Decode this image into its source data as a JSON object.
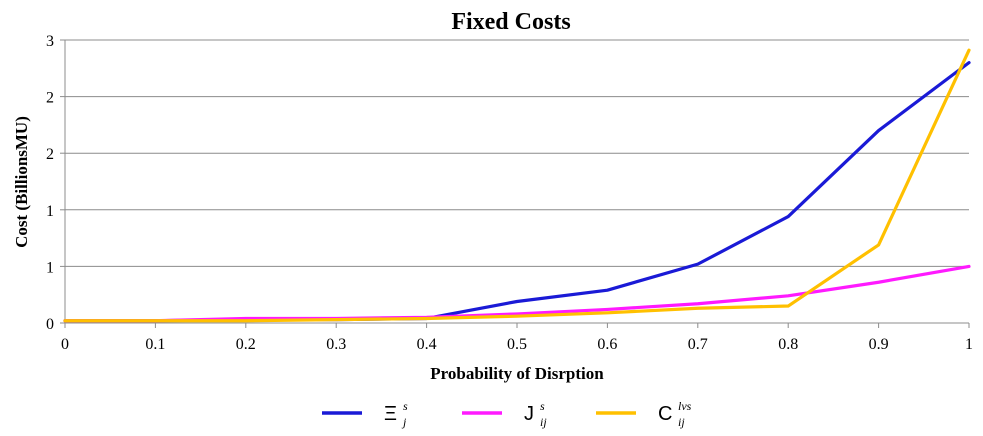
{
  "chart_data": {
    "type": "line",
    "title": "Fixed Costs",
    "xlabel": "Probability  of Disrption",
    "ylabel": "Cost (BillionsMU)",
    "x": [
      0,
      0.1,
      0.2,
      0.3,
      0.4,
      0.5,
      0.6,
      0.7,
      0.8,
      0.9,
      1
    ],
    "x_tick_labels": [
      "0",
      "0.1",
      "0.2",
      "0.3",
      "0.4",
      "0.5",
      "0.6",
      "0.7",
      "0.8",
      "0.9",
      "1"
    ],
    "y_tick_labels": [
      "0",
      "1",
      "1",
      "2",
      "2",
      "3"
    ],
    "ylim": [
      0,
      2.5
    ],
    "xlim": [
      0,
      1
    ],
    "grid": true,
    "legend_position": "bottom",
    "series": [
      {
        "name": "Ξ",
        "superscript": "s",
        "subscript": "j",
        "color": "#1a1ad6",
        "values": [
          0.02,
          0.02,
          0.03,
          0.03,
          0.04,
          0.19,
          0.29,
          0.52,
          0.94,
          1.7,
          2.3
        ]
      },
      {
        "name": "J",
        "superscript": "s",
        "subscript": "ij",
        "color": "#ff1aff",
        "values": [
          0.02,
          0.02,
          0.04,
          0.04,
          0.05,
          0.08,
          0.12,
          0.17,
          0.24,
          0.36,
          0.5
        ]
      },
      {
        "name": "C",
        "superscript": "lvs",
        "subscript": "ij",
        "color": "#ffc000",
        "values": [
          0.02,
          0.02,
          0.02,
          0.03,
          0.04,
          0.06,
          0.09,
          0.13,
          0.15,
          0.69,
          2.41
        ]
      }
    ]
  }
}
